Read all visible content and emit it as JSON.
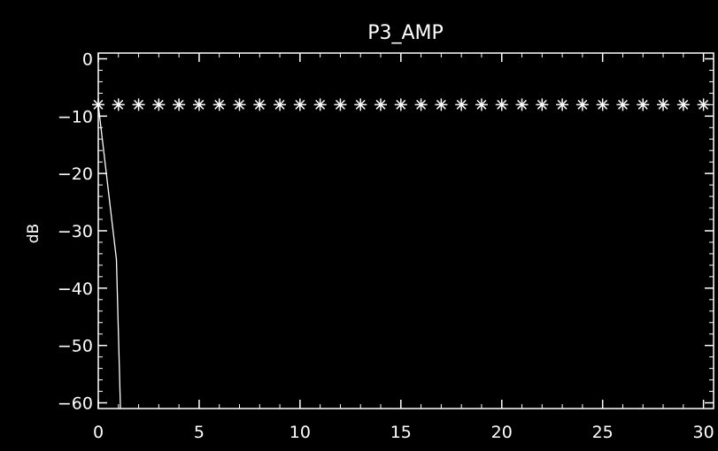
{
  "chart_data": {
    "type": "scatter",
    "title": "P3_AMP",
    "xlabel": "",
    "ylabel": "dB",
    "xlim": [
      0,
      30.5
    ],
    "ylim": [
      -61,
      1
    ],
    "x_ticks": [
      0,
      5,
      10,
      15,
      20,
      25,
      30
    ],
    "y_ticks": [
      0,
      -10,
      -20,
      -30,
      -40,
      -50,
      -60
    ],
    "grid": false,
    "legend": "none",
    "colors": {
      "background": "#000000",
      "foreground": "#ffffff"
    },
    "series": [
      {
        "marker": "asterisk",
        "x": [
          0,
          1,
          2,
          3,
          4,
          5,
          6,
          7,
          8,
          9,
          10,
          11,
          12,
          13,
          14,
          15,
          16,
          17,
          18,
          19,
          20,
          21,
          22,
          23,
          24,
          25,
          26,
          27,
          28,
          29,
          30
        ],
        "y": [
          -8,
          -8,
          -8,
          -8,
          -8,
          -8,
          -8,
          -8,
          -8,
          -8,
          -8,
          -8,
          -8,
          -8,
          -8,
          -8,
          -8,
          -8,
          -8,
          -8,
          -8,
          -8,
          -8,
          -8,
          -8,
          -8,
          -8,
          -8,
          -8,
          -8,
          -8
        ]
      },
      {
        "marker": "none",
        "line": "solid",
        "x": [
          0,
          0.9,
          1.1
        ],
        "y": [
          -8,
          -35,
          -61
        ]
      }
    ]
  }
}
